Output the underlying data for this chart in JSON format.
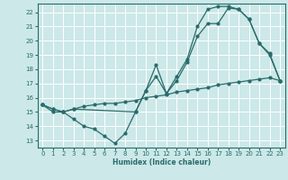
{
  "xlabel": "Humidex (Indice chaleur)",
  "bg_color": "#cce8e8",
  "line_color": "#2a6b6b",
  "grid_color": "#ffffff",
  "xlim": [
    -0.5,
    23.5
  ],
  "ylim": [
    12.5,
    22.6
  ],
  "xticks": [
    0,
    1,
    2,
    3,
    4,
    5,
    6,
    7,
    8,
    9,
    10,
    11,
    12,
    13,
    14,
    15,
    16,
    17,
    18,
    19,
    20,
    21,
    22,
    23
  ],
  "yticks": [
    13,
    14,
    15,
    16,
    17,
    18,
    19,
    20,
    21,
    22
  ],
  "line1_x": [
    0,
    1,
    2,
    3,
    4,
    5,
    6,
    7,
    8,
    9,
    10,
    11,
    12,
    13,
    14,
    15,
    16,
    17,
    18,
    19,
    20,
    21,
    22,
    23
  ],
  "line1_y": [
    15.5,
    15.0,
    15.0,
    14.5,
    14.0,
    13.8,
    13.3,
    12.8,
    13.5,
    15.0,
    16.5,
    17.5,
    16.3,
    17.2,
    18.5,
    20.3,
    21.2,
    21.2,
    22.3,
    22.2,
    21.5,
    19.8,
    19.0,
    17.2
  ],
  "line2_x": [
    0,
    1,
    2,
    3,
    4,
    5,
    6,
    7,
    8,
    9,
    10,
    11,
    12,
    13,
    14,
    15,
    16,
    17,
    18,
    19,
    20,
    21,
    22,
    23
  ],
  "line2_y": [
    15.5,
    15.2,
    15.0,
    15.2,
    15.4,
    15.5,
    15.6,
    15.6,
    15.7,
    15.8,
    16.0,
    16.1,
    16.2,
    16.4,
    16.5,
    16.6,
    16.7,
    16.9,
    17.0,
    17.1,
    17.2,
    17.3,
    17.4,
    17.2
  ],
  "line3_x": [
    0,
    1,
    2,
    3,
    9,
    10,
    11,
    12,
    13,
    14,
    15,
    16,
    17,
    18,
    19,
    20,
    21,
    22,
    23
  ],
  "line3_y": [
    15.5,
    15.2,
    15.0,
    15.2,
    15.0,
    16.5,
    18.3,
    16.3,
    17.5,
    18.7,
    21.0,
    22.2,
    22.4,
    22.4,
    22.2,
    21.5,
    19.8,
    19.1,
    17.2
  ]
}
